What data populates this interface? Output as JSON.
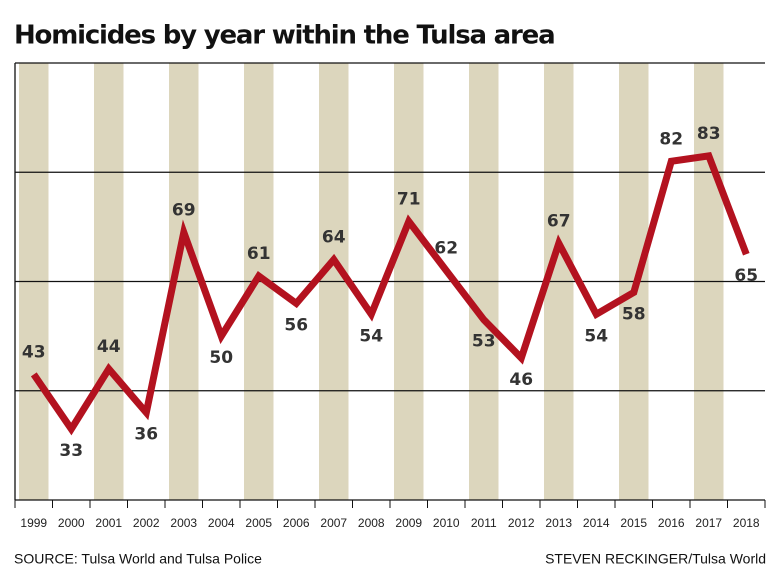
{
  "chart_data": {
    "type": "line",
    "title": "Homicides by year within the Tulsa area",
    "categories": [
      "1999",
      "2000",
      "2001",
      "2002",
      "2003",
      "2004",
      "2005",
      "2006",
      "2007",
      "2008",
      "2009",
      "2010",
      "2011",
      "2012",
      "2013",
      "2014",
      "2015",
      "2016",
      "2017",
      "2018"
    ],
    "values": [
      43,
      33,
      44,
      36,
      69,
      50,
      61,
      56,
      64,
      54,
      71,
      62,
      53,
      46,
      67,
      54,
      58,
      82,
      83,
      65
    ],
    "color": "#b3121f",
    "ylim": [
      20,
      100
    ],
    "yticks": [
      40,
      60,
      80
    ],
    "grid": true,
    "source": "SOURCE: Tulsa World and Tulsa Police",
    "credit": "STEVEN RECKINGER/Tulsa World"
  }
}
